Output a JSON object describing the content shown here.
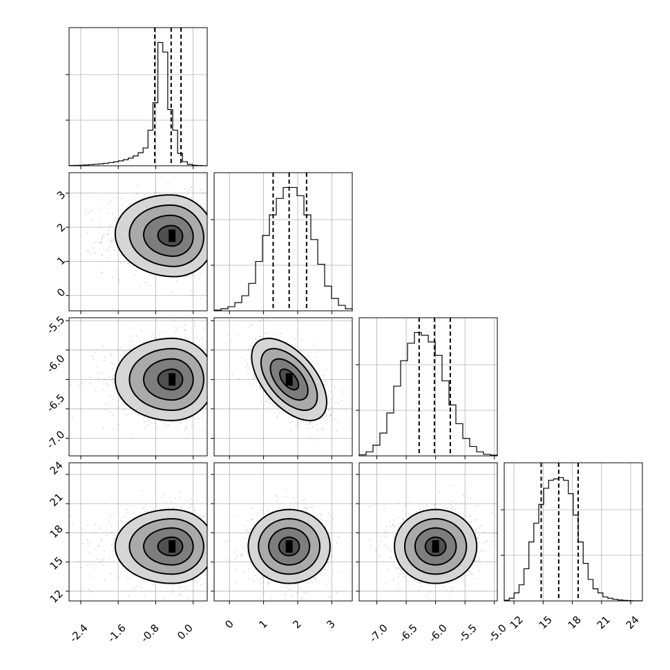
{
  "chart_data": {
    "type": "corner",
    "dimensions": 4,
    "ticks": [
      [
        "-2.4",
        "-1.6",
        "-0.8",
        "0.0"
      ],
      [
        "0",
        "1",
        "2",
        "3"
      ],
      [
        "-7.0",
        "-6.5",
        "-6.0",
        "-5.5",
        "-5.0"
      ],
      [
        "12",
        "15",
        "18",
        "21",
        "24"
      ]
    ],
    "params": [
      {
        "range": [
          -2.65,
          0.3
        ],
        "ticks": [
          -2.4,
          -1.6,
          -0.8,
          0.0
        ],
        "median": -0.47,
        "quantiles": [
          -0.82,
          -0.47,
          -0.26
        ],
        "bins": 28,
        "hist": [
          0.2,
          0.3,
          0.4,
          0.6,
          0.8,
          1.1,
          1.4,
          1.8,
          2.3,
          2.9,
          3.6,
          4.4,
          5.6,
          7.2,
          9.5,
          13,
          26,
          46,
          90,
          83,
          41,
          26,
          9,
          3,
          1,
          0.4,
          0.2,
          0.1
        ]
      },
      {
        "range": [
          -0.45,
          3.6
        ],
        "ticks": [
          0,
          1,
          2,
          3
        ],
        "median": 1.75,
        "quantiles": [
          1.28,
          1.75,
          2.26
        ],
        "bins": 20,
        "hist": [
          0.5,
          1.5,
          3,
          6,
          11,
          20,
          36,
          55,
          70,
          82,
          90,
          90,
          84,
          70,
          52,
          34,
          18,
          9,
          4,
          1.5
        ]
      },
      {
        "range": [
          -7.3,
          -4.95
        ],
        "ticks": [
          -7.0,
          -6.5,
          -6.0,
          -5.5,
          -5.0
        ],
        "median": -6.02,
        "quantiles": [
          -6.28,
          -6.02,
          -5.75
        ],
        "bins": 20,
        "hist": [
          0.8,
          3,
          8,
          17,
          32,
          52,
          71,
          84,
          92,
          90,
          85,
          75,
          56,
          38,
          24,
          13,
          7,
          3,
          1.2,
          0.5
        ]
      },
      {
        "range": [
          11.0,
          25.2
        ],
        "ticks": [
          12,
          15,
          18,
          21,
          24
        ],
        "median": 16.6,
        "quantiles": [
          14.8,
          16.6,
          18.6
        ],
        "bins": 28,
        "hist": [
          0.5,
          2,
          6,
          12,
          24,
          44,
          58,
          72,
          84,
          90,
          91,
          92,
          90,
          80,
          64,
          44,
          28,
          16,
          9,
          6,
          3,
          2,
          1.2,
          0.7,
          0.4,
          0.2,
          0.1,
          0.05
        ]
      }
    ],
    "pairs": [
      {
        "row": 1,
        "col": 0,
        "mean": [
          -0.45,
          1.75
        ],
        "sd": [
          0.45,
          0.6
        ],
        "rho": -0.05
      },
      {
        "row": 2,
        "col": 0,
        "mean": [
          -0.45,
          -6.0
        ],
        "sd": [
          0.45,
          0.35
        ],
        "rho": 0.0
      },
      {
        "row": 2,
        "col": 1,
        "mean": [
          1.75,
          -6.0
        ],
        "sd": [
          0.55,
          0.35
        ],
        "rho": -0.55
      },
      {
        "row": 3,
        "col": 0,
        "mean": [
          -0.45,
          16.6
        ],
        "sd": [
          0.45,
          1.9
        ],
        "rho": 0.0
      },
      {
        "row": 3,
        "col": 1,
        "mean": [
          1.75,
          16.6
        ],
        "sd": [
          0.6,
          1.9
        ],
        "rho": 0.0
      },
      {
        "row": 3,
        "col": 2,
        "mean": [
          -6.0,
          16.6
        ],
        "sd": [
          0.35,
          1.9
        ],
        "rho": 0.0
      }
    ],
    "contour_levels_sigma": [
      0.5,
      1.0,
      1.5,
      2.0
    ],
    "grid": true,
    "colors": {
      "line": "#000000",
      "scatter": "#808080",
      "grid": "#b0b0b0"
    }
  }
}
